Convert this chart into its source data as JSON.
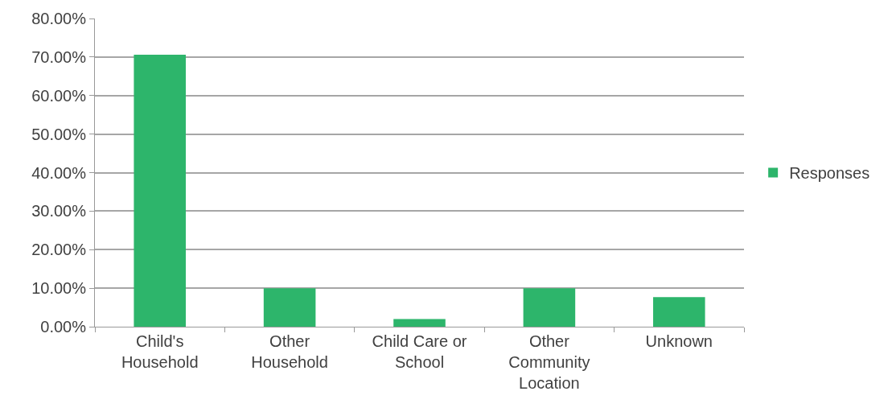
{
  "chart_data": {
    "type": "bar",
    "categories": [
      "Child's Household",
      "Other Household",
      "Child Care or School",
      "Other Community Location",
      "Unknown"
    ],
    "series": [
      {
        "name": "Responses",
        "color": "#2db56b",
        "values": [
          70.6,
          10.0,
          2.0,
          10.0,
          7.7
        ]
      }
    ],
    "ylim": [
      0,
      80
    ],
    "yticks": [
      {
        "value": 0,
        "label": "0.00%"
      },
      {
        "value": 10,
        "label": "10.00%"
      },
      {
        "value": 20,
        "label": "20.00%"
      },
      {
        "value": 30,
        "label": "30.00%"
      },
      {
        "value": 40,
        "label": "40.00%"
      },
      {
        "value": 50,
        "label": "50.00%"
      },
      {
        "value": 60,
        "label": "60.00%"
      },
      {
        "value": 70,
        "label": "70.00%"
      },
      {
        "value": 80,
        "label": "80.00%"
      }
    ],
    "grid": "y",
    "legend": "right"
  }
}
